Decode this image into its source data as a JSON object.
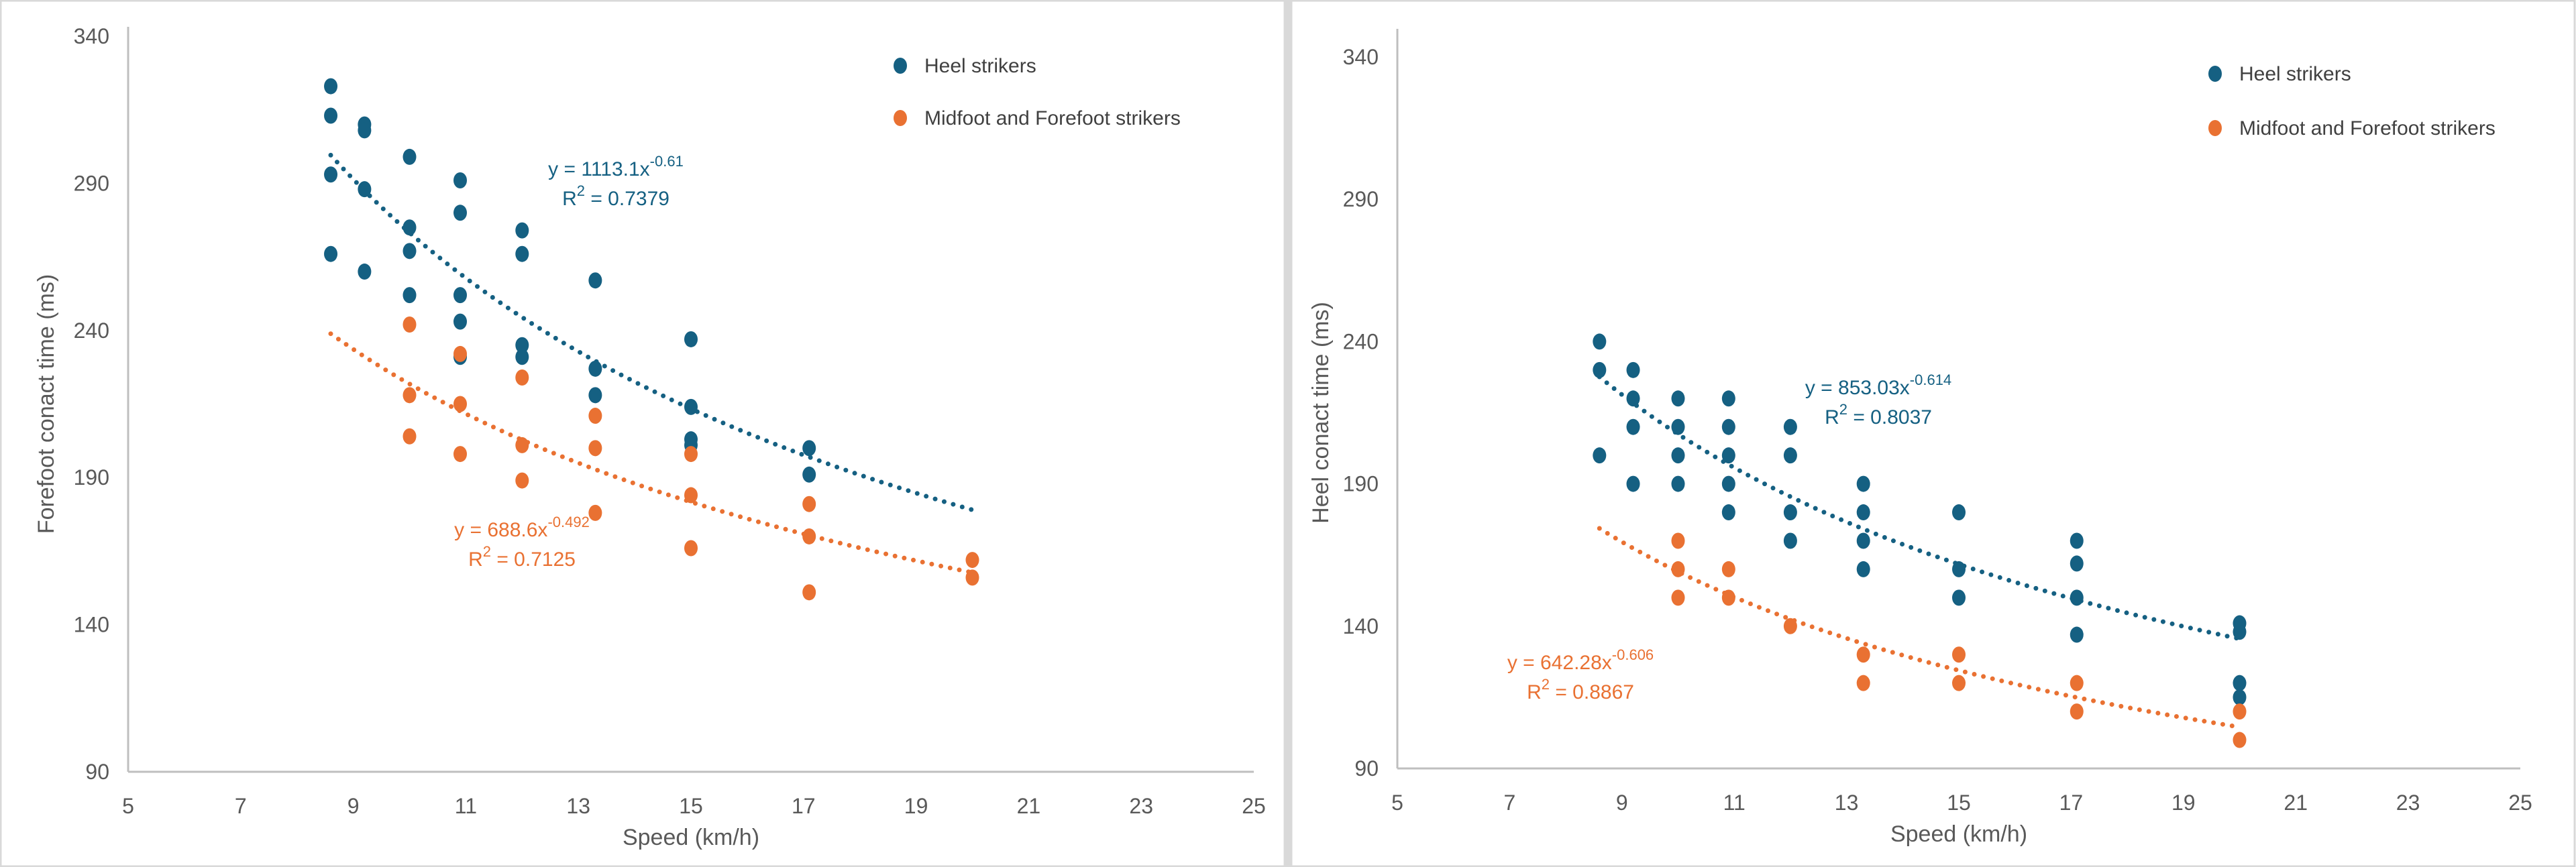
{
  "colors": {
    "heel": "#156082",
    "midfoot": "#E97132",
    "axis": "#BFBFBF",
    "text": "#595959",
    "divider": "#D9D9D9"
  },
  "chart_data": [
    {
      "type": "scatter",
      "title": "",
      "xlabel": "Speed (km/h)",
      "ylabel": "Forefoot conact time (ms)",
      "xlim": [
        5,
        25
      ],
      "ylim": [
        90,
        340
      ],
      "xticks": [
        "5",
        "7",
        "9",
        "11",
        "13",
        "15",
        "17",
        "19",
        "21",
        "23",
        "25"
      ],
      "yticks": [
        "90",
        "140",
        "190",
        "240",
        "290",
        "340"
      ],
      "legend_position": "top-right",
      "series": [
        {
          "name": "Heel strikers",
          "points": [
            [
              8.6,
              323
            ],
            [
              8.6,
              313
            ],
            [
              8.6,
              293
            ],
            [
              8.6,
              266
            ],
            [
              9.2,
              310
            ],
            [
              9.2,
              308
            ],
            [
              9.2,
              288
            ],
            [
              9.2,
              260
            ],
            [
              10,
              299
            ],
            [
              10,
              275
            ],
            [
              10,
              267
            ],
            [
              10,
              252
            ],
            [
              10.9,
              291
            ],
            [
              10.9,
              280
            ],
            [
              10.9,
              252
            ],
            [
              10.9,
              243
            ],
            [
              10.9,
              231
            ],
            [
              12,
              274
            ],
            [
              12,
              266
            ],
            [
              12,
              235
            ],
            [
              12,
              231
            ],
            [
              13.3,
              257
            ],
            [
              13.3,
              227
            ],
            [
              13.3,
              218
            ],
            [
              15,
              237
            ],
            [
              15,
              214
            ],
            [
              15,
              203
            ],
            [
              15,
              201
            ],
            [
              17.1,
              200
            ],
            [
              17.1,
              191
            ]
          ],
          "trendline": {
            "a": 1113.1,
            "b": -0.61,
            "xrange": [
              8.6,
              20
            ],
            "equation": "y = 1113.1x",
            "exponent": "-0.61",
            "r2_label": "R",
            "r2_sup": "2",
            "r2_value": " = 0.7379"
          }
        },
        {
          "name": "Midfoot and Forefoot strikers",
          "points": [
            [
              10,
              242
            ],
            [
              10,
              218
            ],
            [
              10,
              204
            ],
            [
              10.9,
              232
            ],
            [
              10.9,
              215
            ],
            [
              10.9,
              198
            ],
            [
              12,
              224
            ],
            [
              12,
              201
            ],
            [
              12,
              189
            ],
            [
              13.3,
              211
            ],
            [
              13.3,
              200
            ],
            [
              13.3,
              178
            ],
            [
              15,
              198
            ],
            [
              15,
              184
            ],
            [
              15,
              166
            ],
            [
              17.1,
              181
            ],
            [
              17.1,
              170
            ],
            [
              17.1,
              151
            ],
            [
              20,
              162
            ],
            [
              20,
              156
            ]
          ],
          "trendline": {
            "a": 688.6,
            "b": -0.492,
            "xrange": [
              8.6,
              20
            ],
            "equation": "y = 688.6x",
            "exponent": "-0.492",
            "r2_label": "R",
            "r2_sup": "2",
            "r2_value": " = 0.7125"
          }
        }
      ]
    },
    {
      "type": "scatter",
      "title": "",
      "xlabel": "Speed (km/h)",
      "ylabel": "Heel conact time (ms)",
      "xlim": [
        5,
        25
      ],
      "ylim": [
        90,
        340
      ],
      "xticks": [
        "5",
        "7",
        "9",
        "11",
        "13",
        "15",
        "17",
        "19",
        "21",
        "23",
        "25"
      ],
      "yticks": [
        "90",
        "140",
        "190",
        "240",
        "290",
        "340"
      ],
      "legend_position": "top-right",
      "series": [
        {
          "name": "Heel strikers",
          "points": [
            [
              8.6,
              240
            ],
            [
              8.6,
              230
            ],
            [
              8.6,
              200
            ],
            [
              9.2,
              230
            ],
            [
              9.2,
              220
            ],
            [
              9.2,
              210
            ],
            [
              9.2,
              190
            ],
            [
              10,
              220
            ],
            [
              10,
              210
            ],
            [
              10,
              200
            ],
            [
              10,
              190
            ],
            [
              10.9,
              220
            ],
            [
              10.9,
              210
            ],
            [
              10.9,
              200
            ],
            [
              10.9,
              190
            ],
            [
              10.9,
              180
            ],
            [
              12,
              210
            ],
            [
              12,
              200
            ],
            [
              12,
              180
            ],
            [
              12,
              170
            ],
            [
              13.3,
              190
            ],
            [
              13.3,
              180
            ],
            [
              13.3,
              170
            ],
            [
              13.3,
              160
            ],
            [
              15,
              180
            ],
            [
              15,
              160
            ],
            [
              15,
              150
            ],
            [
              17.1,
              170
            ],
            [
              17.1,
              162
            ],
            [
              17.1,
              150
            ],
            [
              17.1,
              137
            ],
            [
              20,
              141
            ],
            [
              20,
              138
            ],
            [
              20,
              120
            ],
            [
              20,
              115
            ]
          ],
          "trendline": {
            "a": 853.03,
            "b": -0.614,
            "xrange": [
              8.6,
              20
            ],
            "equation": "y = 853.03x",
            "exponent": "-0.614",
            "r2_label": "R",
            "r2_sup": "2",
            "r2_value": " = 0.8037"
          }
        },
        {
          "name": "Midfoot and Forefoot strikers",
          "points": [
            [
              10,
              170
            ],
            [
              10,
              160
            ],
            [
              10,
              150
            ],
            [
              10.9,
              160
            ],
            [
              10.9,
              150
            ],
            [
              12,
              140
            ],
            [
              13.3,
              130
            ],
            [
              13.3,
              120
            ],
            [
              15,
              130
            ],
            [
              15,
              120
            ],
            [
              17.1,
              120
            ],
            [
              17.1,
              110
            ],
            [
              20,
              110
            ],
            [
              20,
              100
            ]
          ],
          "trendline": {
            "a": 642.28,
            "b": -0.606,
            "xrange": [
              8.6,
              20
            ],
            "equation": "y = 642.28x",
            "exponent": "-0.606",
            "r2_label": "R",
            "r2_sup": "2",
            "r2_value": " = 0.8867"
          }
        }
      ]
    }
  ]
}
